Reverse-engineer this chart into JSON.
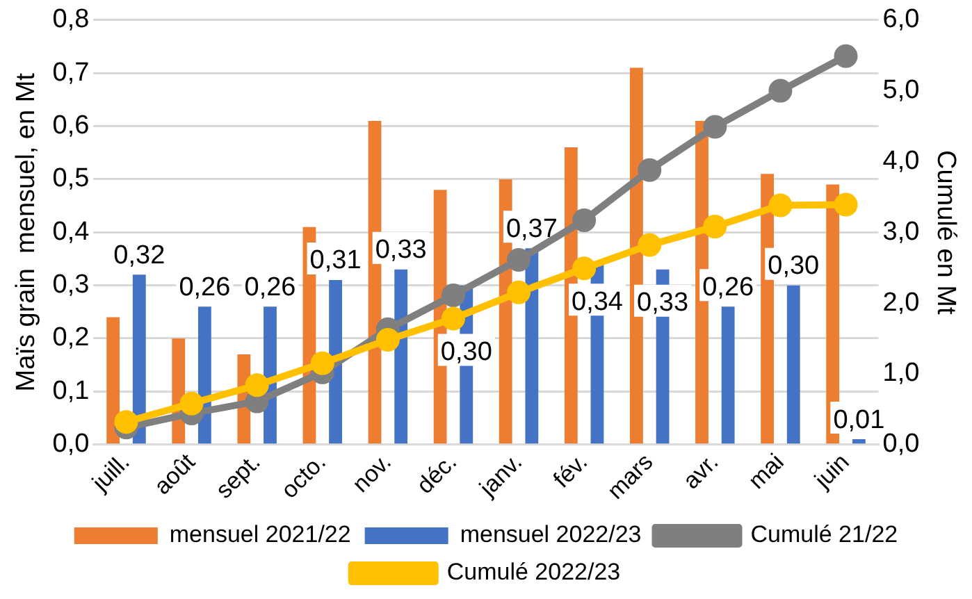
{
  "chart_data": {
    "type": "bar",
    "ylabel": "Maïs grain  mensuel, en Mt",
    "y2label": "Cumulé en Mt",
    "categories": [
      "juill.",
      "août",
      "sept.",
      "octo.",
      "nov.",
      "déc.",
      "janv.",
      "fév.",
      "mars",
      "avr.",
      "mai",
      "juin"
    ],
    "series": [
      {
        "name": "mensuel 2021/22",
        "color": "#ed7d31",
        "values": [
          0.24,
          0.2,
          0.17,
          0.41,
          0.61,
          0.48,
          0.5,
          0.56,
          0.71,
          0.61,
          0.51,
          0.49
        ]
      },
      {
        "name": "mensuel 2022/23",
        "color": "#4472c4",
        "values": [
          0.32,
          0.26,
          0.26,
          0.31,
          0.33,
          0.3,
          0.37,
          0.34,
          0.33,
          0.26,
          0.3,
          0.01
        ],
        "value_labels": [
          "0,32",
          "0,26",
          "0,26",
          "0,31",
          "0,33",
          "0,30",
          "0,37",
          "0,34",
          "0,33",
          "0,26",
          "0,30",
          "0,01"
        ]
      },
      {
        "name": "Cumulé 21/22",
        "type": "line",
        "axis": "y2",
        "color": "#7f7f7f",
        "values": [
          0.24,
          0.44,
          0.61,
          1.02,
          1.63,
          2.11,
          2.61,
          3.17,
          3.88,
          4.49,
          5.0,
          5.49
        ]
      },
      {
        "name": "Cumulé 2022/23",
        "type": "line",
        "axis": "y2",
        "color": "#ffc000",
        "values": [
          0.32,
          0.58,
          0.84,
          1.15,
          1.48,
          1.78,
          2.15,
          2.49,
          2.82,
          3.08,
          3.38,
          3.39
        ]
      }
    ],
    "ylim": [
      0,
      0.8
    ],
    "yticks": [
      {
        "value": 0,
        "label": "0,0"
      },
      {
        "value": 0.1,
        "label": "0,1"
      },
      {
        "value": 0.2,
        "label": "0,2"
      },
      {
        "value": 0.3,
        "label": "0,3"
      },
      {
        "value": 0.4,
        "label": "0,4"
      },
      {
        "value": 0.5,
        "label": "0,5"
      },
      {
        "value": 0.6,
        "label": "0,6"
      },
      {
        "value": 0.7,
        "label": "0,7"
      },
      {
        "value": 0.8,
        "label": "0,8"
      }
    ],
    "y2lim": [
      0,
      6
    ],
    "y2ticks": [
      {
        "value": 0,
        "label": "0,0"
      },
      {
        "value": 1,
        "label": "1,0"
      },
      {
        "value": 2,
        "label": "2,0"
      },
      {
        "value": 3,
        "label": "3,0"
      },
      {
        "value": 4,
        "label": "4,0"
      },
      {
        "value": 5,
        "label": "5,0"
      },
      {
        "value": 6,
        "label": "6,0"
      }
    ],
    "grid": "y",
    "legend": "bottom",
    "marker": "circle"
  }
}
